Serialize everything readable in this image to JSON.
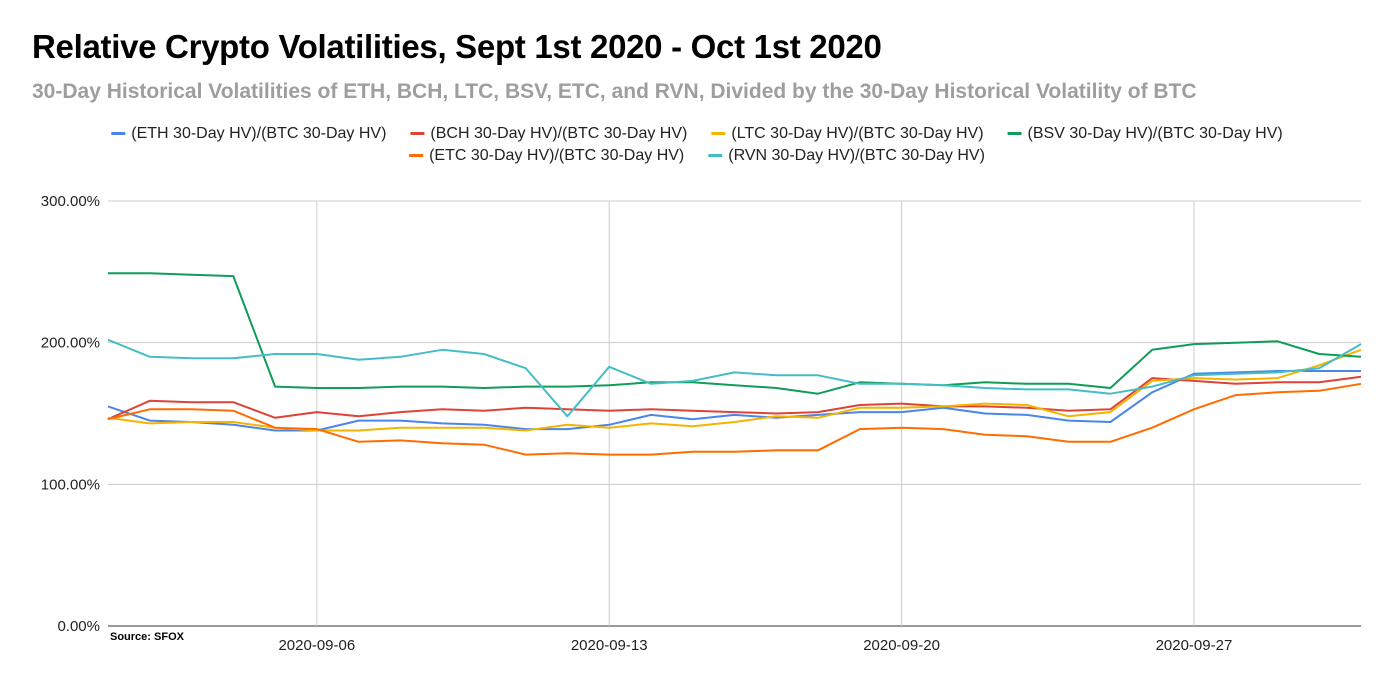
{
  "chart_data": {
    "type": "line",
    "title": "Relative Crypto Volatilities, Sept 1st 2020 - Oct 1st 2020",
    "subtitle": "30-Day Historical Volatilities of ETH, BCH, LTC, BSV, ETC, and RVN, Divided by the 30-Day Historical Volatility of BTC",
    "source": "Source: SFOX",
    "x": [
      "2020-09-01",
      "2020-09-02",
      "2020-09-03",
      "2020-09-04",
      "2020-09-05",
      "2020-09-06",
      "2020-09-07",
      "2020-09-08",
      "2020-09-09",
      "2020-09-10",
      "2020-09-11",
      "2020-09-12",
      "2020-09-13",
      "2020-09-14",
      "2020-09-15",
      "2020-09-16",
      "2020-09-17",
      "2020-09-18",
      "2020-09-19",
      "2020-09-20",
      "2020-09-21",
      "2020-09-22",
      "2020-09-23",
      "2020-09-24",
      "2020-09-25",
      "2020-09-26",
      "2020-09-27",
      "2020-09-28",
      "2020-09-29",
      "2020-09-30",
      "2020-10-01"
    ],
    "x_ticks": [
      "2020-09-06",
      "2020-09-13",
      "2020-09-20",
      "2020-09-27"
    ],
    "y_ticks": [
      "300.00%",
      "200.00%",
      "100.00%",
      "0.00%"
    ],
    "y_tick_values": [
      300,
      200,
      100,
      0
    ],
    "ylim": [
      0,
      300
    ],
    "grid": true,
    "legend_position": "top",
    "series": [
      {
        "name": "(ETH 30-Day HV)/(BTC 30-Day HV)",
        "color": "#4a86e8",
        "values": [
          155,
          145,
          144,
          142,
          138,
          138,
          145,
          145,
          143,
          142,
          139,
          139,
          142,
          149,
          146,
          149,
          147,
          149,
          151,
          151,
          154,
          150,
          149,
          145,
          144,
          165,
          178,
          179,
          180,
          180,
          180
        ]
      },
      {
        "name": "(BCH 30-Day HV)/(BTC 30-Day HV)",
        "color": "#db4437",
        "values": [
          146,
          159,
          158,
          158,
          147,
          151,
          148,
          151,
          153,
          152,
          154,
          153,
          152,
          153,
          152,
          151,
          150,
          151,
          156,
          157,
          155,
          155,
          154,
          152,
          153,
          175,
          173,
          171,
          172,
          172,
          176
        ]
      },
      {
        "name": "(LTC 30-Day HV)/(BTC 30-Day HV)",
        "color": "#f4b400",
        "values": [
          147,
          143,
          144,
          144,
          140,
          138,
          138,
          140,
          140,
          140,
          138,
          142,
          140,
          143,
          141,
          144,
          148,
          147,
          154,
          154,
          155,
          157,
          156,
          148,
          151,
          173,
          175,
          174,
          175,
          184,
          195
        ]
      },
      {
        "name": "(BSV 30-Day HV)/(BTC 30-Day HV)",
        "color": "#0f9d58",
        "values": [
          249,
          249,
          248,
          247,
          169,
          168,
          168,
          169,
          169,
          168,
          169,
          169,
          170,
          172,
          172,
          170,
          168,
          164,
          172,
          171,
          170,
          172,
          171,
          171,
          168,
          195,
          199,
          200,
          201,
          192,
          190
        ]
      },
      {
        "name": "(ETC 30-Day HV)/(BTC 30-Day HV)",
        "color": "#ff6d01",
        "values": [
          146,
          153,
          153,
          152,
          140,
          139,
          130,
          131,
          129,
          128,
          121,
          122,
          121,
          121,
          123,
          123,
          124,
          124,
          139,
          140,
          139,
          135,
          134,
          130,
          130,
          140,
          153,
          163,
          165,
          166,
          171
        ]
      },
      {
        "name": "(RVN 30-Day HV)/(BTC 30-Day HV)",
        "color": "#46bdc6",
        "values": [
          202,
          190,
          189,
          189,
          192,
          192,
          188,
          190,
          195,
          192,
          182,
          148,
          183,
          171,
          173,
          179,
          177,
          177,
          171,
          171,
          170,
          168,
          167,
          167,
          164,
          169,
          177,
          178,
          179,
          182,
          199
        ]
      }
    ]
  }
}
